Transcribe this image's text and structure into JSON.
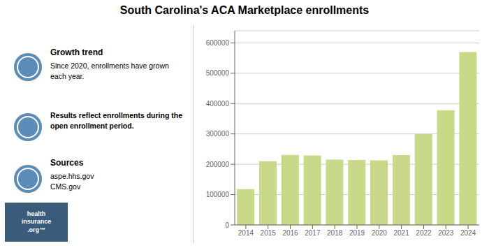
{
  "chart_data": {
    "type": "bar",
    "title": "South Carolina's ACA Marketplace enrollments",
    "categories": [
      "2014",
      "2015",
      "2016",
      "2017",
      "2018",
      "2019",
      "2020",
      "2021",
      "2022",
      "2023",
      "2024"
    ],
    "values": [
      118000,
      210000,
      231000,
      229000,
      215000,
      214000,
      213000,
      230000,
      300000,
      378000,
      570000
    ],
    "color": "#c8d98a",
    "ylim": [
      0,
      640000
    ],
    "yticks": [
      0,
      100000,
      200000,
      300000,
      400000,
      500000,
      600000
    ],
    "grid": true,
    "annotations": [
      "Growth trend",
      "Since 2020, enrollments have grown\neach year.",
      "Results reflect enrollments during the\nopen enrollment period.",
      "Sources",
      "aspe.hhs.gov\nCMS.gov",
      "health\ninsurance\n.org™"
    ]
  }
}
